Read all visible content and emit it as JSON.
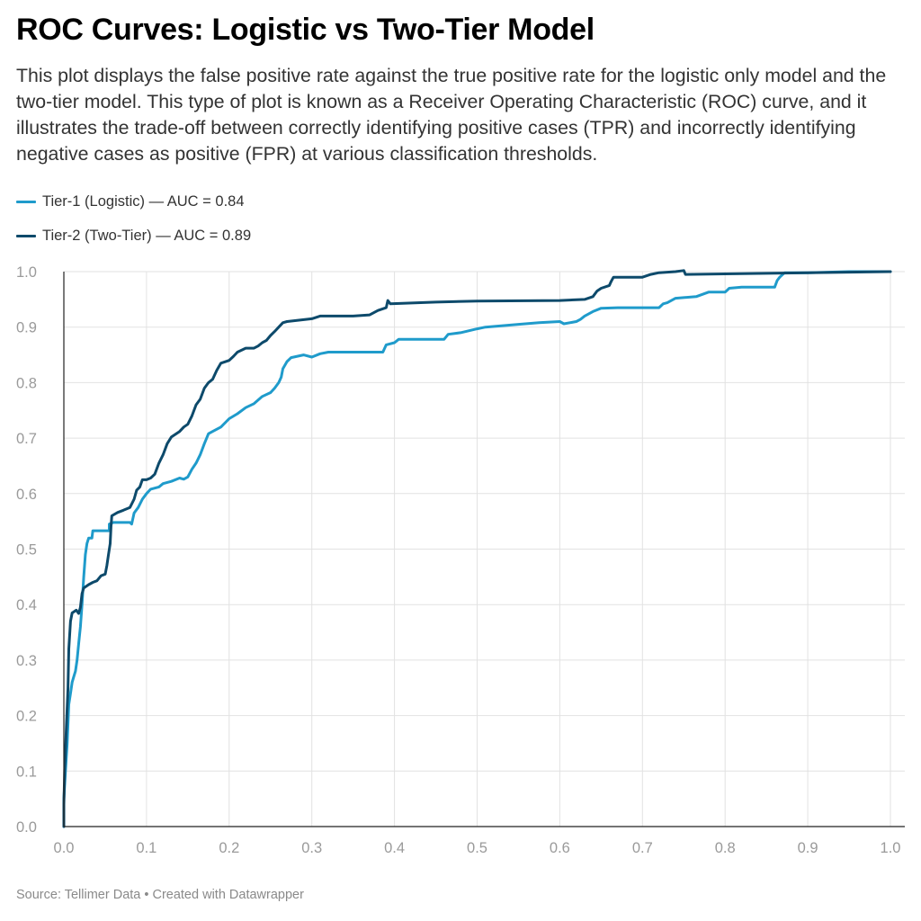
{
  "header": {
    "title": "ROC Curves: Logistic vs Two-Tier Model",
    "subtitle": "This plot displays the false positive rate against the true positive rate for the logistic only model and the two-tier model. This type of plot is known as a Receiver Operating Characteristic (ROC) curve, and it illustrates the trade-off between correctly identifying positive cases (TPR) and incorrectly identifying negative cases as positive (FPR) at various classification thresholds."
  },
  "footer": {
    "source": "Source: Tellimer Data • Created with Datawrapper"
  },
  "colors": {
    "tier1": "#1f9bcb",
    "tier2": "#0d4a6b",
    "grid": "#e2e2e2",
    "axis": "#222222"
  },
  "chart_data": {
    "type": "line",
    "title": "ROC Curves: Logistic vs Two-Tier Model",
    "xlabel": "",
    "ylabel": "",
    "xlim": [
      0,
      1
    ],
    "ylim": [
      0,
      1
    ],
    "x_ticks": [
      "0.0",
      "0.1",
      "0.2",
      "0.3",
      "0.4",
      "0.5",
      "0.6",
      "0.7",
      "0.8",
      "0.9",
      "1.0"
    ],
    "y_ticks": [
      "0.0",
      "0.1",
      "0.2",
      "0.3",
      "0.4",
      "0.5",
      "0.6",
      "0.7",
      "0.8",
      "0.9",
      "1.0"
    ],
    "grid": true,
    "legend_position": "top-left",
    "series": [
      {
        "name": "Tier-1 (Logistic) — AUC = 0.84",
        "color": "#1f9bcb",
        "points": [
          [
            0.0,
            0.0
          ],
          [
            0.0,
            0.05
          ],
          [
            0.002,
            0.1
          ],
          [
            0.004,
            0.15
          ],
          [
            0.006,
            0.22
          ],
          [
            0.008,
            0.24
          ],
          [
            0.01,
            0.26
          ],
          [
            0.012,
            0.27
          ],
          [
            0.014,
            0.28
          ],
          [
            0.016,
            0.3
          ],
          [
            0.018,
            0.33
          ],
          [
            0.02,
            0.36
          ],
          [
            0.022,
            0.4
          ],
          [
            0.024,
            0.45
          ],
          [
            0.026,
            0.49
          ],
          [
            0.028,
            0.51
          ],
          [
            0.03,
            0.52
          ],
          [
            0.034,
            0.52
          ],
          [
            0.035,
            0.533
          ],
          [
            0.055,
            0.533
          ],
          [
            0.055,
            0.545
          ],
          [
            0.06,
            0.548
          ],
          [
            0.08,
            0.548
          ],
          [
            0.082,
            0.545
          ],
          [
            0.085,
            0.565
          ],
          [
            0.09,
            0.575
          ],
          [
            0.095,
            0.59
          ],
          [
            0.1,
            0.6
          ],
          [
            0.105,
            0.608
          ],
          [
            0.115,
            0.612
          ],
          [
            0.12,
            0.618
          ],
          [
            0.13,
            0.622
          ],
          [
            0.14,
            0.628
          ],
          [
            0.145,
            0.626
          ],
          [
            0.15,
            0.63
          ],
          [
            0.155,
            0.644
          ],
          [
            0.16,
            0.655
          ],
          [
            0.165,
            0.67
          ],
          [
            0.17,
            0.69
          ],
          [
            0.175,
            0.708
          ],
          [
            0.18,
            0.712
          ],
          [
            0.19,
            0.72
          ],
          [
            0.2,
            0.735
          ],
          [
            0.21,
            0.744
          ],
          [
            0.22,
            0.755
          ],
          [
            0.23,
            0.762
          ],
          [
            0.24,
            0.775
          ],
          [
            0.25,
            0.782
          ],
          [
            0.255,
            0.79
          ],
          [
            0.26,
            0.8
          ],
          [
            0.263,
            0.81
          ],
          [
            0.265,
            0.825
          ],
          [
            0.27,
            0.838
          ],
          [
            0.275,
            0.845
          ],
          [
            0.29,
            0.85
          ],
          [
            0.3,
            0.846
          ],
          [
            0.31,
            0.852
          ],
          [
            0.32,
            0.855
          ],
          [
            0.345,
            0.855
          ],
          [
            0.37,
            0.855
          ],
          [
            0.386,
            0.855
          ],
          [
            0.39,
            0.868
          ],
          [
            0.4,
            0.872
          ],
          [
            0.405,
            0.878
          ],
          [
            0.43,
            0.878
          ],
          [
            0.46,
            0.878
          ],
          [
            0.465,
            0.887
          ],
          [
            0.48,
            0.89
          ],
          [
            0.5,
            0.897
          ],
          [
            0.51,
            0.9
          ],
          [
            0.55,
            0.905
          ],
          [
            0.575,
            0.908
          ],
          [
            0.6,
            0.91
          ],
          [
            0.605,
            0.906
          ],
          [
            0.62,
            0.91
          ],
          [
            0.625,
            0.914
          ],
          [
            0.63,
            0.92
          ],
          [
            0.64,
            0.928
          ],
          [
            0.65,
            0.934
          ],
          [
            0.67,
            0.935
          ],
          [
            0.69,
            0.935
          ],
          [
            0.72,
            0.935
          ],
          [
            0.725,
            0.942
          ],
          [
            0.73,
            0.944
          ],
          [
            0.74,
            0.952
          ],
          [
            0.765,
            0.955
          ],
          [
            0.78,
            0.963
          ],
          [
            0.8,
            0.963
          ],
          [
            0.805,
            0.97
          ],
          [
            0.82,
            0.972
          ],
          [
            0.84,
            0.972
          ],
          [
            0.86,
            0.972
          ],
          [
            0.863,
            0.984
          ],
          [
            0.866,
            0.99
          ],
          [
            0.872,
            0.998
          ],
          [
            0.9,
            0.998
          ],
          [
            0.95,
            1.0
          ],
          [
            1.0,
            1.0
          ]
        ]
      },
      {
        "name": "Tier-2 (Two-Tier) — AUC = 0.89",
        "color": "#0d4a6b",
        "points": [
          [
            0.0,
            0.0
          ],
          [
            0.0,
            0.04
          ],
          [
            0.001,
            0.1
          ],
          [
            0.003,
            0.18
          ],
          [
            0.005,
            0.25
          ],
          [
            0.006,
            0.32
          ],
          [
            0.008,
            0.37
          ],
          [
            0.01,
            0.385
          ],
          [
            0.015,
            0.39
          ],
          [
            0.018,
            0.384
          ],
          [
            0.02,
            0.395
          ],
          [
            0.022,
            0.42
          ],
          [
            0.024,
            0.43
          ],
          [
            0.03,
            0.436
          ],
          [
            0.035,
            0.44
          ],
          [
            0.04,
            0.443
          ],
          [
            0.045,
            0.452
          ],
          [
            0.05,
            0.455
          ],
          [
            0.052,
            0.47
          ],
          [
            0.054,
            0.49
          ],
          [
            0.056,
            0.51
          ],
          [
            0.057,
            0.54
          ],
          [
            0.058,
            0.56
          ],
          [
            0.065,
            0.566
          ],
          [
            0.072,
            0.57
          ],
          [
            0.08,
            0.575
          ],
          [
            0.085,
            0.59
          ],
          [
            0.088,
            0.606
          ],
          [
            0.092,
            0.612
          ],
          [
            0.095,
            0.625
          ],
          [
            0.1,
            0.625
          ],
          [
            0.105,
            0.628
          ],
          [
            0.11,
            0.635
          ],
          [
            0.115,
            0.655
          ],
          [
            0.12,
            0.67
          ],
          [
            0.125,
            0.69
          ],
          [
            0.13,
            0.702
          ],
          [
            0.14,
            0.712
          ],
          [
            0.145,
            0.72
          ],
          [
            0.15,
            0.725
          ],
          [
            0.155,
            0.74
          ],
          [
            0.16,
            0.76
          ],
          [
            0.165,
            0.77
          ],
          [
            0.17,
            0.79
          ],
          [
            0.175,
            0.8
          ],
          [
            0.18,
            0.806
          ],
          [
            0.185,
            0.822
          ],
          [
            0.19,
            0.835
          ],
          [
            0.2,
            0.84
          ],
          [
            0.205,
            0.847
          ],
          [
            0.21,
            0.855
          ],
          [
            0.22,
            0.862
          ],
          [
            0.23,
            0.862
          ],
          [
            0.235,
            0.866
          ],
          [
            0.24,
            0.872
          ],
          [
            0.245,
            0.876
          ],
          [
            0.25,
            0.885
          ],
          [
            0.255,
            0.892
          ],
          [
            0.26,
            0.9
          ],
          [
            0.265,
            0.908
          ],
          [
            0.27,
            0.91
          ],
          [
            0.3,
            0.915
          ],
          [
            0.31,
            0.92
          ],
          [
            0.35,
            0.92
          ],
          [
            0.37,
            0.922
          ],
          [
            0.38,
            0.93
          ],
          [
            0.39,
            0.935
          ],
          [
            0.392,
            0.948
          ],
          [
            0.395,
            0.942
          ],
          [
            0.45,
            0.945
          ],
          [
            0.5,
            0.947
          ],
          [
            0.6,
            0.948
          ],
          [
            0.63,
            0.95
          ],
          [
            0.64,
            0.955
          ],
          [
            0.645,
            0.965
          ],
          [
            0.65,
            0.97
          ],
          [
            0.66,
            0.975
          ],
          [
            0.662,
            0.982
          ],
          [
            0.665,
            0.99
          ],
          [
            0.7,
            0.99
          ],
          [
            0.71,
            0.995
          ],
          [
            0.72,
            0.998
          ],
          [
            0.74,
            1.0
          ],
          [
            0.75,
            1.002
          ],
          [
            0.752,
            0.995
          ],
          [
            0.8,
            0.996
          ],
          [
            0.9,
            0.998
          ],
          [
            1.0,
            1.0
          ]
        ]
      }
    ]
  }
}
